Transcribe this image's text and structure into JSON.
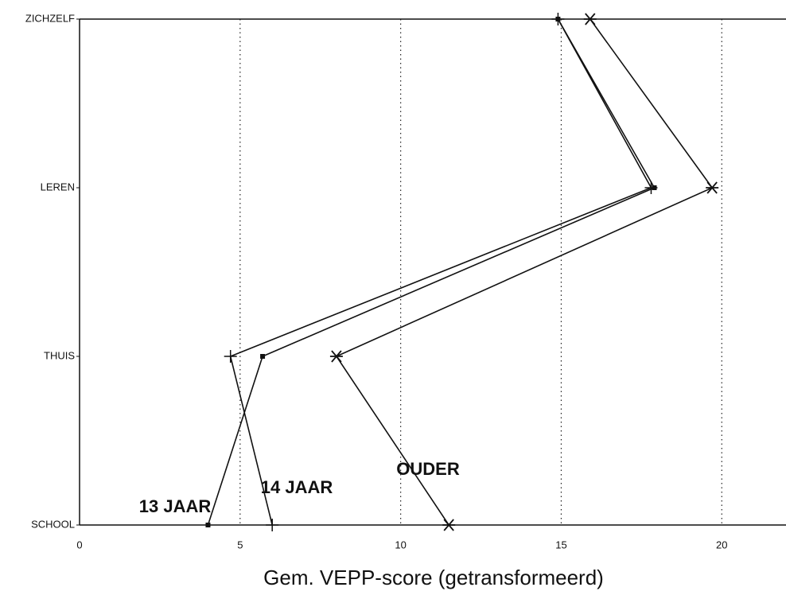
{
  "chart_data": {
    "type": "line",
    "orientation": "horizontal",
    "x_label": "Gem. VEPP-score (getransformeerd)",
    "categories": [
      "ZICHZELF",
      "LEREN",
      "THUIS",
      "SCHOOL"
    ],
    "series": [
      {
        "name": "13 JAAR",
        "color": "#111111",
        "marker": "square",
        "values": [
          14.9,
          17.9,
          5.7,
          4.0
        ]
      },
      {
        "name": "14 JAAR",
        "color": "#111111",
        "marker": "plus",
        "values": [
          14.9,
          17.8,
          4.7,
          6.0
        ]
      },
      {
        "name": "OUDER",
        "color": "#111111",
        "marker": "star",
        "values": [
          15.9,
          19.7,
          8.0,
          11.5
        ]
      }
    ],
    "xlim": [
      0,
      22
    ],
    "xticks": [
      0,
      5,
      10,
      15,
      20
    ],
    "grid": true
  }
}
